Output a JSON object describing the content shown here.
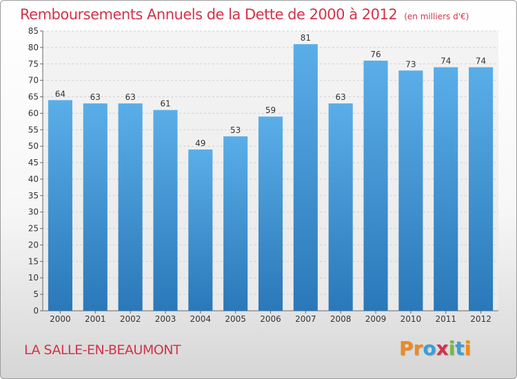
{
  "chart_data": {
    "type": "bar",
    "title": "Remboursements Annuels de la Dette de 2000 à 2012",
    "subtitle": "(en milliers d'€)",
    "categories": [
      "2000",
      "2001",
      "2002",
      "2003",
      "2004",
      "2005",
      "2006",
      "2007",
      "2008",
      "2009",
      "2010",
      "2011",
      "2012"
    ],
    "values": [
      64,
      63,
      63,
      61,
      49,
      53,
      59,
      81,
      63,
      76,
      73,
      74,
      74
    ],
    "ylim": [
      0,
      85
    ],
    "yticks": [
      0,
      5,
      10,
      15,
      20,
      25,
      30,
      35,
      40,
      45,
      50,
      55,
      60,
      65,
      70,
      75,
      80,
      85
    ],
    "grid": true,
    "bar_color_top": "#5aaee8",
    "bar_color_bottom": "#2a78b9"
  },
  "commune": "LA SALLE-EN-BEAUMONT",
  "logo": {
    "text": "Proxiti",
    "colors": [
      "#f08a1c",
      "#f08a1c",
      "#3a9fd8",
      "#d2334a",
      "#7ab648",
      "#3a9fd8",
      "#f08a1c"
    ]
  },
  "colors": {
    "accent": "#d2334a"
  }
}
